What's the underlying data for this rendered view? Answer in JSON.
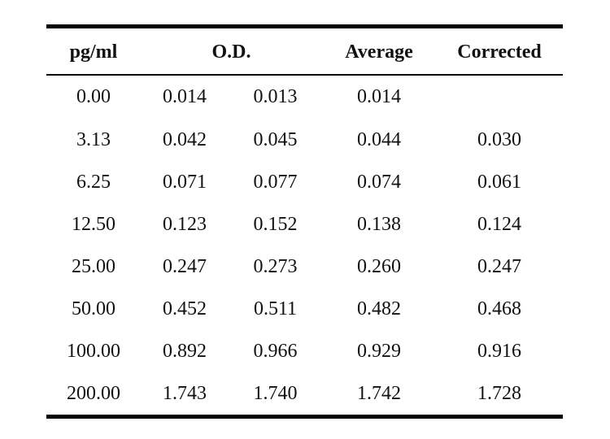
{
  "table": {
    "headers": {
      "concentration": "pg/ml",
      "od": "O.D.",
      "average": "Average",
      "corrected": "Corrected"
    },
    "rows": [
      {
        "conc": "0.00",
        "od1": "0.014",
        "od2": "0.013",
        "avg": "0.014",
        "corr": ""
      },
      {
        "conc": "3.13",
        "od1": "0.042",
        "od2": "0.045",
        "avg": "0.044",
        "corr": "0.030"
      },
      {
        "conc": "6.25",
        "od1": "0.071",
        "od2": "0.077",
        "avg": "0.074",
        "corr": "0.061"
      },
      {
        "conc": "12.50",
        "od1": "0.123",
        "od2": "0.152",
        "avg": "0.138",
        "corr": "0.124"
      },
      {
        "conc": "25.00",
        "od1": "0.247",
        "od2": "0.273",
        "avg": "0.260",
        "corr": "0.247"
      },
      {
        "conc": "50.00",
        "od1": "0.452",
        "od2": "0.511",
        "avg": "0.482",
        "corr": "0.468"
      },
      {
        "conc": "100.00",
        "od1": "0.892",
        "od2": "0.966",
        "avg": "0.929",
        "corr": "0.916"
      },
      {
        "conc": "200.00",
        "od1": "1.743",
        "od2": "1.740",
        "avg": "1.742",
        "corr": "1.728"
      }
    ]
  }
}
